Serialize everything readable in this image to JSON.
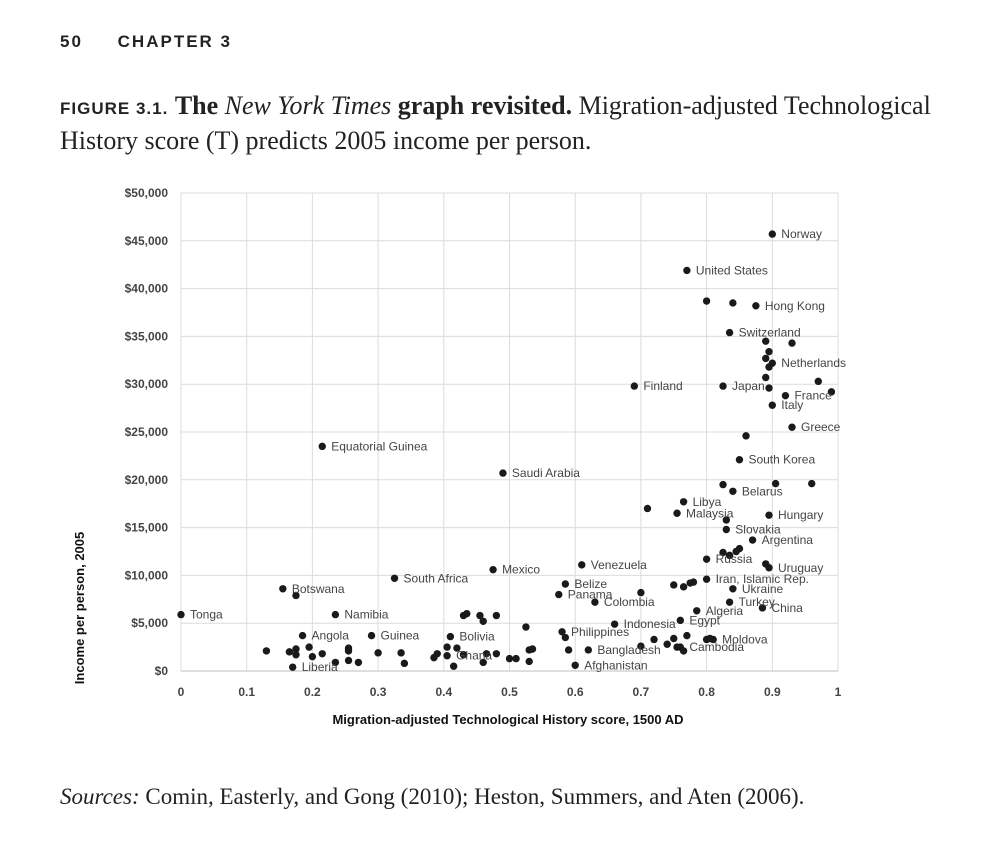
{
  "header": {
    "page_number": "50",
    "chapter": "CHAPTER 3"
  },
  "figure": {
    "label": "FIGURE 3.1.",
    "title_pre": "The ",
    "title_italic": "New York Times",
    "title_post": " graph revisited.",
    "caption": " Migration-adjusted Technological History score (T) predicts 2005 income per person."
  },
  "sources": {
    "label": "Sources:",
    "text": " Comin, Easterly, and Gong (2010); Heston, Summers, and Aten (2006)."
  },
  "chart_data": {
    "type": "scatter",
    "xlabel": "Migration-adjusted Technological History score, 1500 AD",
    "ylabel": "Income per person, 2005",
    "xlim": [
      0,
      1
    ],
    "ylim": [
      0,
      50000
    ],
    "x_ticks": [
      0,
      0.1,
      0.2,
      0.3,
      0.4,
      0.5,
      0.6,
      0.7,
      0.8,
      0.9,
      1
    ],
    "x_tick_labels": [
      "0",
      "0.1",
      "0.2",
      "0.3",
      "0.4",
      "0.5",
      "0.6",
      "0.7",
      "0.8",
      "0.9",
      "1"
    ],
    "y_ticks": [
      0,
      5000,
      10000,
      15000,
      20000,
      25000,
      30000,
      35000,
      40000,
      45000,
      50000
    ],
    "y_tick_labels": [
      "$0",
      "$5,000",
      "$10,000",
      "$15,000",
      "$20,000",
      "$25,000",
      "$30,000",
      "$35,000",
      "$40,000",
      "$45,000",
      "$50,000"
    ],
    "grid": true,
    "legend": "none",
    "point_color": "#1a1a1a",
    "points": [
      {
        "label": "Norway",
        "x": 0.9,
        "y": 45700
      },
      {
        "label": "United States",
        "x": 0.77,
        "y": 41900
      },
      {
        "label": "Hong Kong",
        "x": 0.875,
        "y": 38200
      },
      {
        "label": "Switzerland",
        "x": 0.835,
        "y": 35400
      },
      {
        "label": "Netherlands",
        "x": 0.9,
        "y": 32200
      },
      {
        "label": "Finland",
        "x": 0.69,
        "y": 29800
      },
      {
        "label": "Japan",
        "x": 0.825,
        "y": 29800
      },
      {
        "label": "France",
        "x": 0.92,
        "y": 28800
      },
      {
        "label": "Italy",
        "x": 0.9,
        "y": 27800
      },
      {
        "label": "Greece",
        "x": 0.93,
        "y": 25500
      },
      {
        "label": "Equatorial Guinea",
        "x": 0.215,
        "y": 23500
      },
      {
        "label": "South Korea",
        "x": 0.85,
        "y": 22100
      },
      {
        "label": "Saudi Arabia",
        "x": 0.49,
        "y": 20700
      },
      {
        "label": "Belarus",
        "x": 0.84,
        "y": 18800
      },
      {
        "label": "Libya",
        "x": 0.765,
        "y": 17700
      },
      {
        "label": "Malaysia",
        "x": 0.755,
        "y": 16500
      },
      {
        "label": "Hungary",
        "x": 0.895,
        "y": 16300
      },
      {
        "label": "Slovakia",
        "x": 0.83,
        "y": 14800
      },
      {
        "label": "Argentina",
        "x": 0.87,
        "y": 13700
      },
      {
        "label": "Russia",
        "x": 0.8,
        "y": 11700
      },
      {
        "label": "Uruguay",
        "x": 0.895,
        "y": 10800
      },
      {
        "label": "Venezuela",
        "x": 0.61,
        "y": 11100
      },
      {
        "label": "Mexico",
        "x": 0.475,
        "y": 10600
      },
      {
        "label": "South Africa",
        "x": 0.325,
        "y": 9700
      },
      {
        "label": "Iran, Islamic Rep.",
        "x": 0.8,
        "y": 9600
      },
      {
        "label": "Belize",
        "x": 0.585,
        "y": 9100
      },
      {
        "label": "Botswana",
        "x": 0.155,
        "y": 8600
      },
      {
        "label": "Ukraine",
        "x": 0.84,
        "y": 8600
      },
      {
        "label": "Panama",
        "x": 0.575,
        "y": 8000
      },
      {
        "label": "Colombia",
        "x": 0.63,
        "y": 7200
      },
      {
        "label": "Turkey",
        "x": 0.835,
        "y": 7200
      },
      {
        "label": "China",
        "x": 0.885,
        "y": 6600
      },
      {
        "label": "Algeria",
        "x": 0.785,
        "y": 6300
      },
      {
        "label": "Tonga",
        "x": 0.0,
        "y": 5900
      },
      {
        "label": "Namibia",
        "x": 0.235,
        "y": 5900
      },
      {
        "label": "Egypt",
        "x": 0.76,
        "y": 5300
      },
      {
        "label": "Indonesia",
        "x": 0.66,
        "y": 4900
      },
      {
        "label": "Philippines",
        "x": 0.58,
        "y": 4100
      },
      {
        "label": "Angola",
        "x": 0.185,
        "y": 3700
      },
      {
        "label": "Guinea",
        "x": 0.29,
        "y": 3700
      },
      {
        "label": "Bolivia",
        "x": 0.41,
        "y": 3600
      },
      {
        "label": "Moldova",
        "x": 0.81,
        "y": 3300
      },
      {
        "label": "Cambodia",
        "x": 0.76,
        "y": 2500
      },
      {
        "label": "Bangladesh",
        "x": 0.62,
        "y": 2200
      },
      {
        "label": "Ghana",
        "x": 0.405,
        "y": 1600
      },
      {
        "label": "Liberia",
        "x": 0.17,
        "y": 400
      },
      {
        "label": "Afghanistan",
        "x": 0.6,
        "y": 600
      },
      {
        "x": 0.8,
        "y": 38700
      },
      {
        "x": 0.84,
        "y": 38500
      },
      {
        "x": 0.89,
        "y": 34500
      },
      {
        "x": 0.93,
        "y": 34300
      },
      {
        "x": 0.895,
        "y": 33400
      },
      {
        "x": 0.89,
        "y": 32700
      },
      {
        "x": 0.895,
        "y": 31800
      },
      {
        "x": 0.89,
        "y": 30700
      },
      {
        "x": 0.97,
        "y": 30300
      },
      {
        "x": 0.895,
        "y": 29600
      },
      {
        "x": 0.99,
        "y": 29200
      },
      {
        "x": 0.86,
        "y": 24600
      },
      {
        "x": 0.825,
        "y": 19500
      },
      {
        "x": 0.905,
        "y": 19600
      },
      {
        "x": 0.96,
        "y": 19600
      },
      {
        "x": 0.71,
        "y": 17000
      },
      {
        "x": 0.83,
        "y": 15800
      },
      {
        "x": 0.85,
        "y": 12800
      },
      {
        "x": 0.845,
        "y": 12500
      },
      {
        "x": 0.825,
        "y": 12400
      },
      {
        "x": 0.835,
        "y": 12100
      },
      {
        "x": 0.89,
        "y": 11200
      },
      {
        "x": 0.75,
        "y": 9000
      },
      {
        "x": 0.765,
        "y": 8800
      },
      {
        "x": 0.775,
        "y": 9200
      },
      {
        "x": 0.78,
        "y": 9300
      },
      {
        "x": 0.7,
        "y": 8200
      },
      {
        "x": 0.175,
        "y": 7900
      },
      {
        "x": 0.43,
        "y": 5800
      },
      {
        "x": 0.435,
        "y": 6000
      },
      {
        "x": 0.455,
        "y": 5800
      },
      {
        "x": 0.48,
        "y": 5800
      },
      {
        "x": 0.46,
        "y": 5200
      },
      {
        "x": 0.525,
        "y": 4600
      },
      {
        "x": 0.585,
        "y": 3500
      },
      {
        "x": 0.72,
        "y": 3300
      },
      {
        "x": 0.75,
        "y": 3400
      },
      {
        "x": 0.77,
        "y": 3700
      },
      {
        "x": 0.8,
        "y": 3300
      },
      {
        "x": 0.805,
        "y": 3400
      },
      {
        "x": 0.74,
        "y": 2800
      },
      {
        "x": 0.755,
        "y": 2500
      },
      {
        "x": 0.765,
        "y": 2100
      },
      {
        "x": 0.7,
        "y": 2600
      },
      {
        "x": 0.53,
        "y": 2200
      },
      {
        "x": 0.59,
        "y": 2200
      },
      {
        "x": 0.195,
        "y": 2500
      },
      {
        "x": 0.13,
        "y": 2100
      },
      {
        "x": 0.165,
        "y": 2000
      },
      {
        "x": 0.175,
        "y": 2300
      },
      {
        "x": 0.175,
        "y": 1700
      },
      {
        "x": 0.2,
        "y": 1500
      },
      {
        "x": 0.215,
        "y": 1800
      },
      {
        "x": 0.255,
        "y": 2100
      },
      {
        "x": 0.255,
        "y": 2400
      },
      {
        "x": 0.3,
        "y": 1900
      },
      {
        "x": 0.335,
        "y": 1900
      },
      {
        "x": 0.39,
        "y": 1800
      },
      {
        "x": 0.385,
        "y": 1400
      },
      {
        "x": 0.405,
        "y": 2500
      },
      {
        "x": 0.42,
        "y": 2400
      },
      {
        "x": 0.43,
        "y": 1700
      },
      {
        "x": 0.465,
        "y": 1800
      },
      {
        "x": 0.48,
        "y": 1800
      },
      {
        "x": 0.5,
        "y": 1300
      },
      {
        "x": 0.51,
        "y": 1300
      },
      {
        "x": 0.53,
        "y": 1000
      },
      {
        "x": 0.535,
        "y": 2300
      },
      {
        "x": 0.235,
        "y": 900
      },
      {
        "x": 0.255,
        "y": 1100
      },
      {
        "x": 0.27,
        "y": 900
      },
      {
        "x": 0.34,
        "y": 800
      },
      {
        "x": 0.46,
        "y": 900
      },
      {
        "x": 0.415,
        "y": 500
      }
    ]
  }
}
